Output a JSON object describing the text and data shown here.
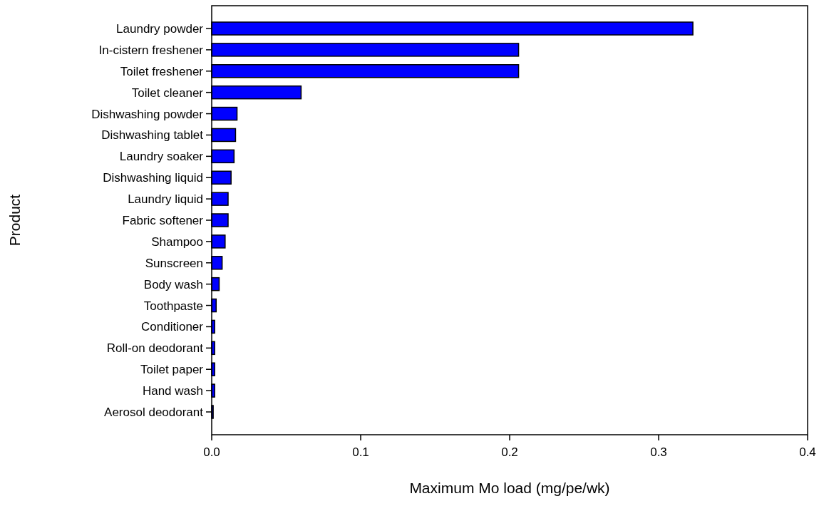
{
  "chart_data": {
    "type": "bar",
    "orientation": "horizontal",
    "xlabel": "Maximum Mo load (mg/pe/wk)",
    "ylabel": "Product",
    "categories": [
      "Laundry powder",
      "In-cistern freshener",
      "Toilet freshener",
      "Toilet cleaner",
      "Dishwashing powder",
      "Dishwashing tablet",
      "Laundry soaker",
      "Dishwashing liquid",
      "Laundry liquid",
      "Fabric softener",
      "Shampoo",
      "Sunscreen",
      "Body wash",
      "Toothpaste",
      "Conditioner",
      "Roll-on deodorant",
      "Toilet paper",
      "Hand wash",
      "Aerosol deodorant"
    ],
    "values": [
      0.323,
      0.206,
      0.206,
      0.06,
      0.017,
      0.016,
      0.015,
      0.013,
      0.011,
      0.011,
      0.009,
      0.007,
      0.005,
      0.003,
      0.002,
      0.002,
      0.002,
      0.002,
      0.001
    ],
    "color": "#0000ff",
    "xlim": [
      0,
      0.4
    ],
    "xticks": [
      {
        "value": 0,
        "label": "0.0"
      },
      {
        "value": 0.1,
        "label": "0.1"
      },
      {
        "value": 0.2,
        "label": "0.2"
      },
      {
        "value": 0.3,
        "label": "0.3"
      },
      {
        "value": 0.4,
        "label": "0.4"
      }
    ],
    "grid": false
  }
}
